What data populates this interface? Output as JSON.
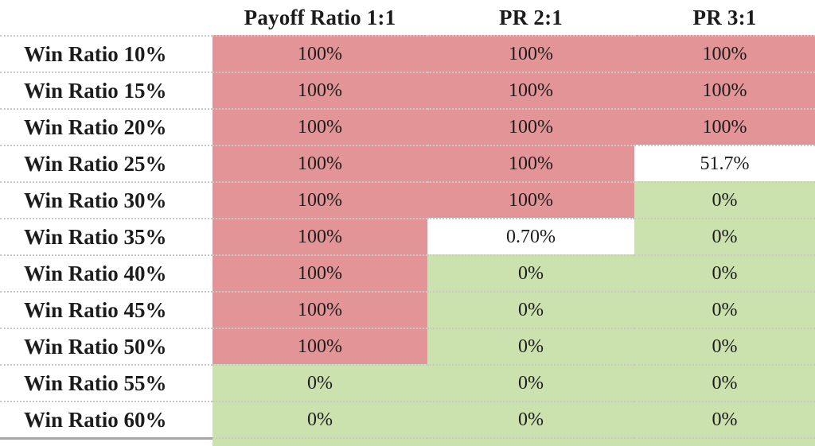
{
  "chart_data": {
    "type": "table",
    "title": "",
    "columns": [
      "",
      "Payoff Ratio 1:1",
      "PR 2:1",
      "PR 3:1"
    ],
    "rows": [
      {
        "label": "Win Ratio 10%",
        "values": [
          "100%",
          "100%",
          "100%"
        ],
        "colors": [
          "red",
          "red",
          "red"
        ]
      },
      {
        "label": "Win Ratio 15%",
        "values": [
          "100%",
          "100%",
          "100%"
        ],
        "colors": [
          "red",
          "red",
          "red"
        ]
      },
      {
        "label": "Win Ratio 20%",
        "values": [
          "100%",
          "100%",
          "100%"
        ],
        "colors": [
          "red",
          "red",
          "red"
        ]
      },
      {
        "label": "Win Ratio 25%",
        "values": [
          "100%",
          "100%",
          "51.7%"
        ],
        "colors": [
          "red",
          "red",
          "white"
        ]
      },
      {
        "label": "Win Ratio 30%",
        "values": [
          "100%",
          "100%",
          "0%"
        ],
        "colors": [
          "red",
          "red",
          "green"
        ]
      },
      {
        "label": "Win Ratio 35%",
        "values": [
          "100%",
          "0.70%",
          "0%"
        ],
        "colors": [
          "red",
          "white",
          "green"
        ]
      },
      {
        "label": "Win Ratio 40%",
        "values": [
          "100%",
          "0%",
          "0%"
        ],
        "colors": [
          "red",
          "green",
          "green"
        ]
      },
      {
        "label": "Win Ratio 45%",
        "values": [
          "100%",
          "0%",
          "0%"
        ],
        "colors": [
          "red",
          "green",
          "green"
        ]
      },
      {
        "label": "Win Ratio 50%",
        "values": [
          "100%",
          "0%",
          "0%"
        ],
        "colors": [
          "red",
          "green",
          "green"
        ]
      },
      {
        "label": "Win Ratio 55%",
        "values": [
          "0%",
          "0%",
          "0%"
        ],
        "colors": [
          "green",
          "green",
          "green"
        ]
      },
      {
        "label": "Win Ratio 60%",
        "values": [
          "0%",
          "0%",
          "0%"
        ],
        "colors": [
          "green",
          "green",
          "green"
        ]
      }
    ],
    "palette": {
      "red": "#e39497",
      "green": "#cbe1ae",
      "white": "#ffffff"
    },
    "footer_colors": [
      "green",
      "green",
      "green"
    ],
    "layout": {
      "grid": "off",
      "row_separator": "dotted",
      "legend_position": "none"
    }
  }
}
